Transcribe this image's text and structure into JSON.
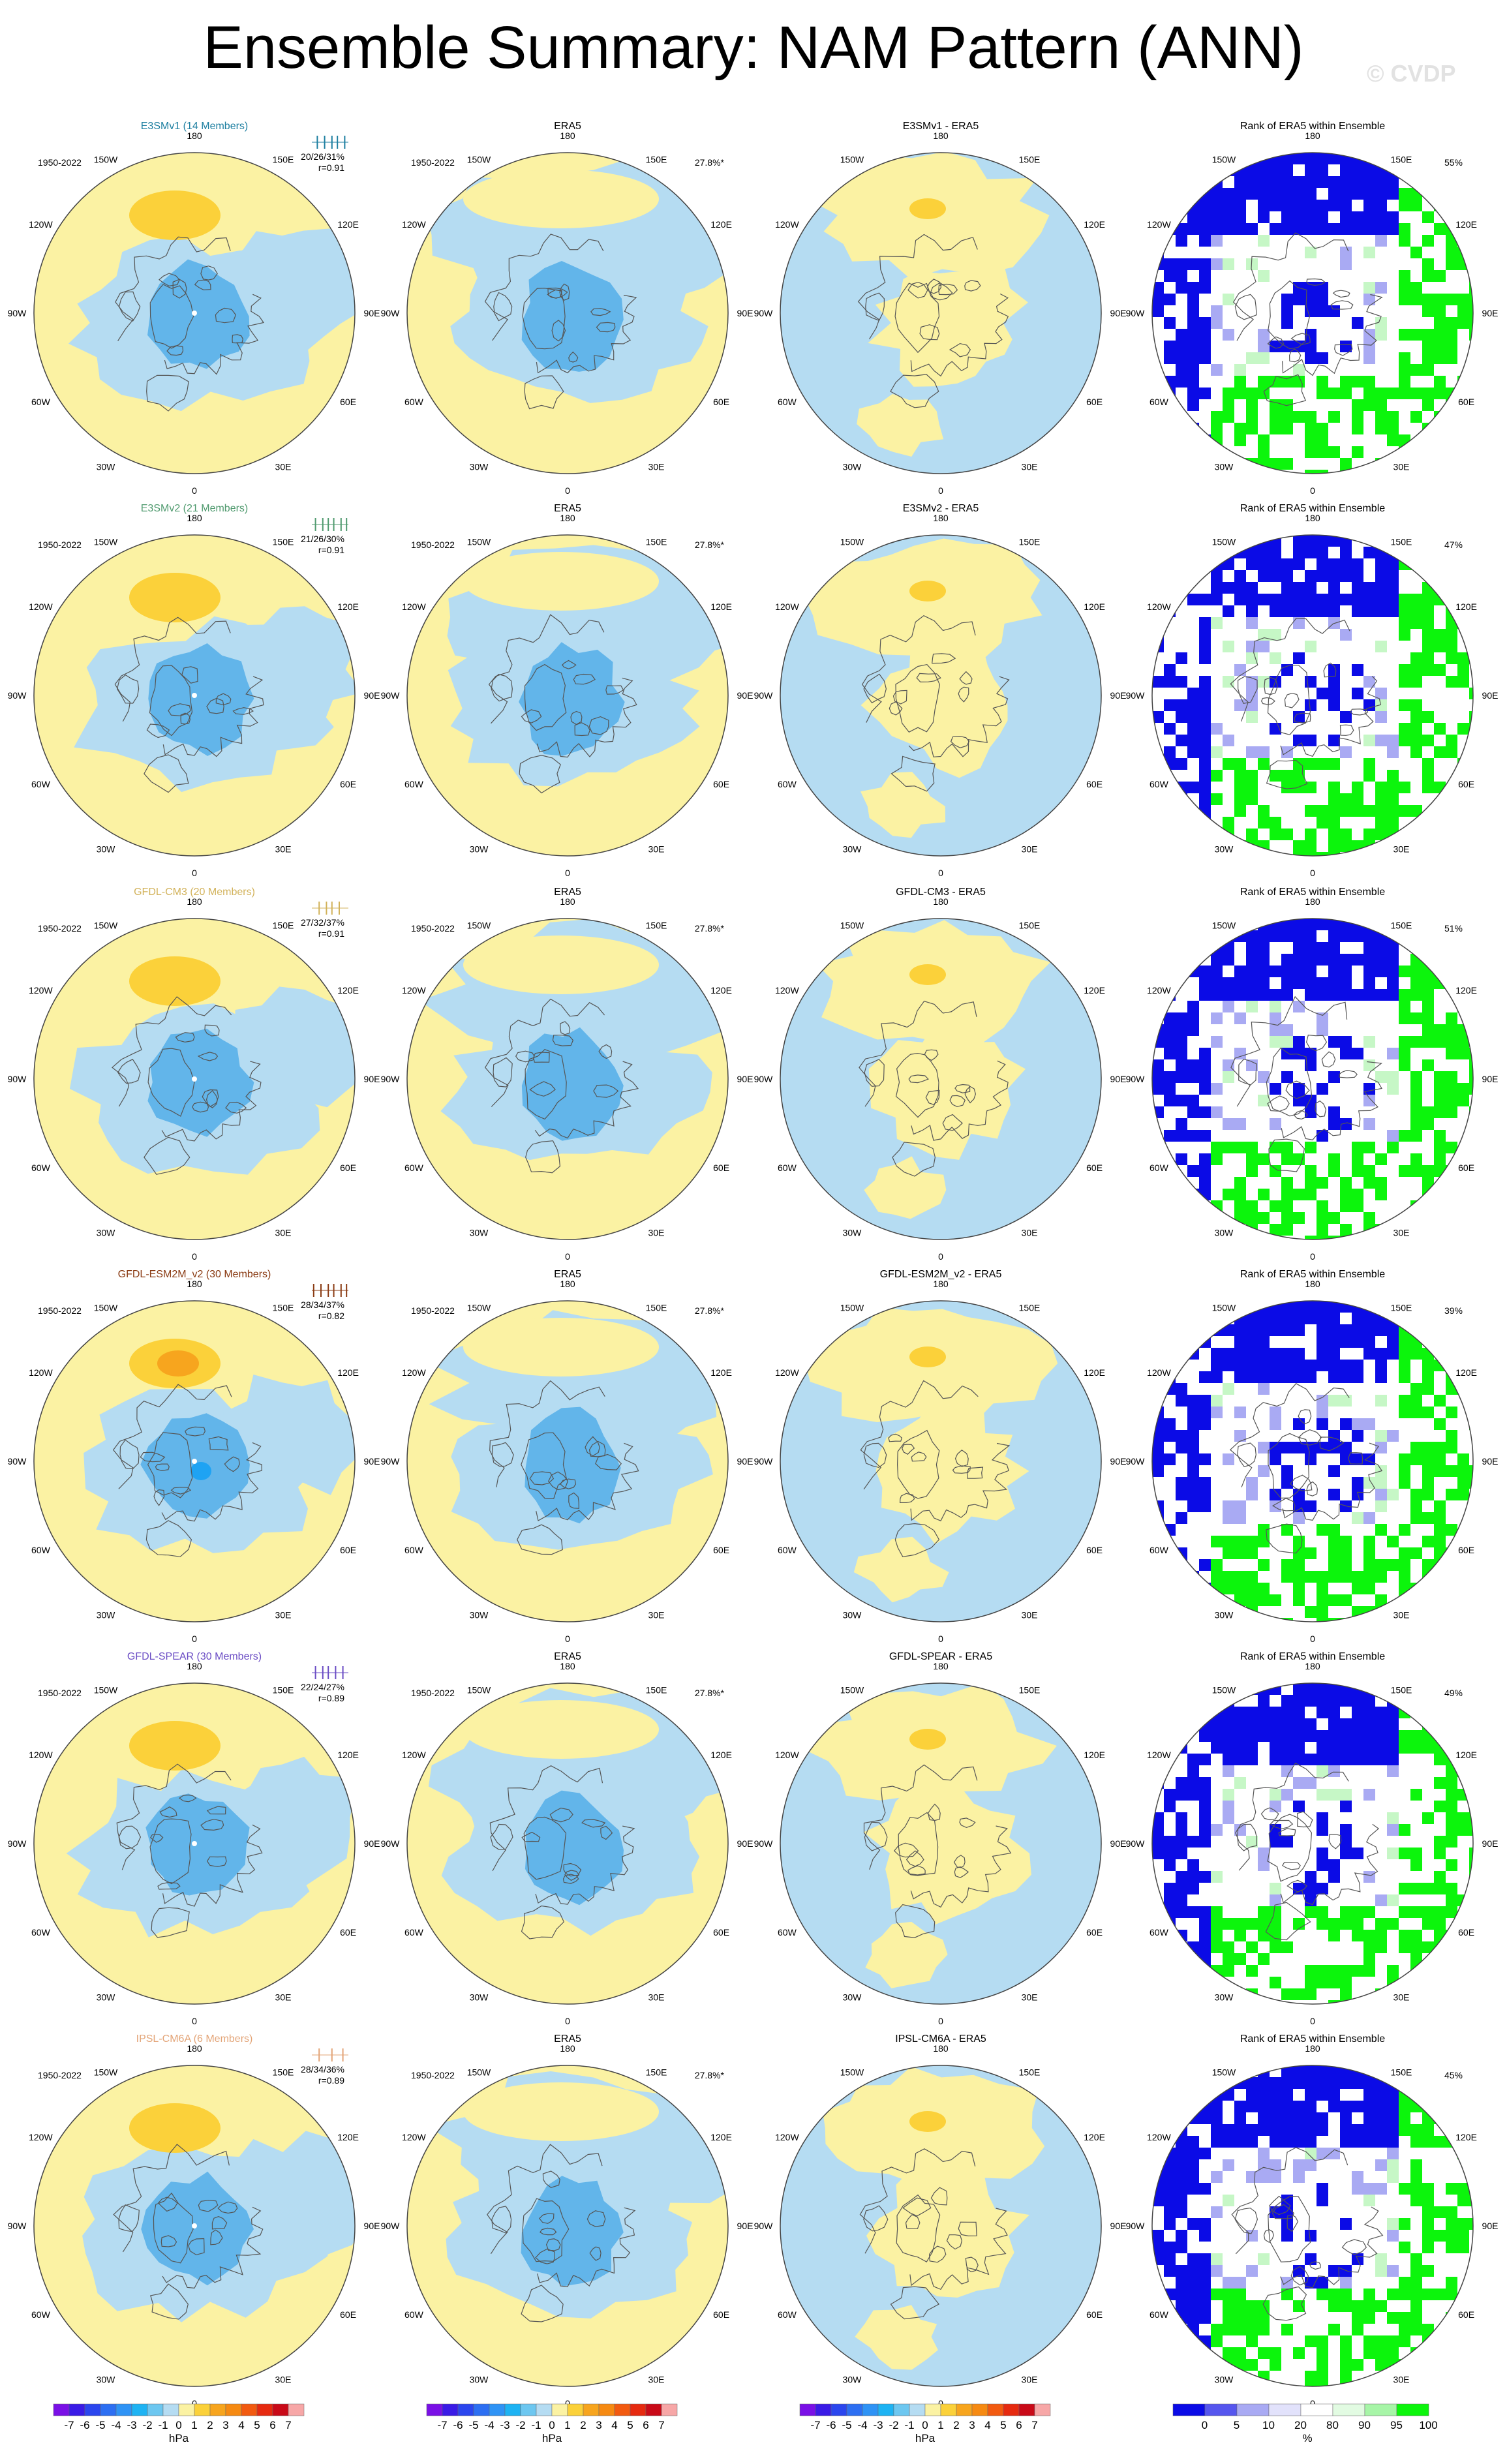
{
  "title": "Ensemble Summary: NAM Pattern (ANN)",
  "watermark": "© CVDP",
  "colors": {
    "yellow_light": "#fbf2a3",
    "yellow_mid": "#fbd13a",
    "orange": "#f7a51e",
    "blue_light": "#b5dcf2",
    "blue_mid": "#62b5ea",
    "blue_deep": "#1ea3f3",
    "rank_blue": "#0b0be6",
    "rank_blue_light": "#a9aaf3",
    "rank_green": "#0cf50c",
    "rank_green_light": "#c6f7c6",
    "coast": "#555555"
  },
  "lon_labels": [
    "180",
    "150E",
    "120E",
    "90E",
    "60E",
    "30E",
    "0",
    "30W",
    "60W",
    "90W",
    "120W",
    "150W"
  ],
  "rows": [
    {
      "model": {
        "title": "E3SMv1 (14 Members)",
        "color": "#1c7ea0",
        "period": "1950-2022",
        "stats": "20/26/31%",
        "r": "r=0.91",
        "ticks": [
          0.15,
          0.35,
          0.55,
          0.7,
          0.9
        ]
      },
      "era5": {
        "title": "ERA5",
        "period": "1950-2022",
        "pct": "27.8%*"
      },
      "diff": {
        "title": "E3SMv1 - ERA5"
      },
      "rank": {
        "title": "Rank of ERA5 within Ensemble",
        "pct": "55%"
      }
    },
    {
      "model": {
        "title": "E3SMv2 (21 Members)",
        "color": "#4f9a6e",
        "period": "1950-2022",
        "stats": "21/26/30%",
        "r": "r=0.91",
        "ticks": [
          0.1,
          0.3,
          0.45,
          0.6,
          0.8,
          0.95
        ]
      },
      "era5": {
        "title": "ERA5",
        "period": "1950-2022",
        "pct": "27.8%*"
      },
      "diff": {
        "title": "E3SMv2 - ERA5"
      },
      "rank": {
        "title": "Rank of ERA5 within Ensemble",
        "pct": "47%"
      }
    },
    {
      "model": {
        "title": "GFDL-CM3 (20 Members)",
        "color": "#d2b25a",
        "period": "1950-2022",
        "stats": "27/32/37%",
        "r": "r=0.91",
        "ticks": [
          0.2,
          0.4,
          0.55,
          0.75
        ]
      },
      "era5": {
        "title": "ERA5",
        "period": "1950-2022",
        "pct": "27.8%*"
      },
      "diff": {
        "title": "GFDL-CM3 - ERA5"
      },
      "rank": {
        "title": "Rank of ERA5 within Ensemble",
        "pct": "51%"
      }
    },
    {
      "model": {
        "title": "GFDL-ESM2M_v2 (30 Members)",
        "color": "#8a3b13",
        "period": "1950-2022",
        "stats": "28/34/37%",
        "r": "r=0.82",
        "ticks": [
          0.05,
          0.25,
          0.45,
          0.6,
          0.8,
          0.95
        ]
      },
      "era5": {
        "title": "ERA5",
        "period": "1950-2022",
        "pct": "27.8%*"
      },
      "diff": {
        "title": "GFDL-ESM2M_v2 - ERA5"
      },
      "rank": {
        "title": "Rank of ERA5 within Ensemble",
        "pct": "39%"
      }
    },
    {
      "model": {
        "title": "GFDL-SPEAR (30 Members)",
        "color": "#6a4cc4",
        "period": "1950-2022",
        "stats": "22/24/27%",
        "r": "r=0.89",
        "ticks": [
          0.1,
          0.3,
          0.45,
          0.65,
          0.85
        ]
      },
      "era5": {
        "title": "ERA5",
        "period": "1950-2022",
        "pct": "27.8%*"
      },
      "diff": {
        "title": "GFDL-SPEAR - ERA5"
      },
      "rank": {
        "title": "Rank of ERA5 within Ensemble",
        "pct": "49%"
      }
    },
    {
      "model": {
        "title": "IPSL-CM6A (6 Members)",
        "color": "#e3a477",
        "period": "1950-2022",
        "stats": "28/34/36%",
        "r": "r=0.89",
        "ticks": [
          0.2,
          0.55,
          0.85
        ]
      },
      "era5": {
        "title": "ERA5",
        "period": "1950-2022",
        "pct": "27.8%*"
      },
      "diff": {
        "title": "IPSL-CM6A - ERA5"
      },
      "rank": {
        "title": "Rank of ERA5 within Ensemble",
        "pct": "45%"
      }
    }
  ],
  "colorbar_hpa": {
    "unit": "hPa",
    "labels": [
      "-7",
      "-6",
      "-5",
      "-4",
      "-3",
      "-2",
      "-1",
      "0",
      "1",
      "2",
      "3",
      "4",
      "5",
      "6",
      "7"
    ],
    "colors": [
      "#7a10e6",
      "#3a1be6",
      "#2b46ee",
      "#2d6ff2",
      "#2f93f5",
      "#1eb3f3",
      "#6dc7f0",
      "#b5dcf2",
      "#fbf2a3",
      "#fbd13a",
      "#f7a51e",
      "#f68a12",
      "#f25a10",
      "#e62a10",
      "#c90a18",
      "#f7a7a7"
    ]
  },
  "colorbar_rank": {
    "unit": "%",
    "labels": [
      "0",
      "5",
      "10",
      "20",
      "80",
      "90",
      "95",
      "100"
    ],
    "colors": [
      "#0b0be6",
      "#5656ee",
      "#a9aaf3",
      "#e2e2fb",
      "#ffffff",
      "#e2fbe2",
      "#a7f5a7",
      "#0cf50c"
    ]
  }
}
